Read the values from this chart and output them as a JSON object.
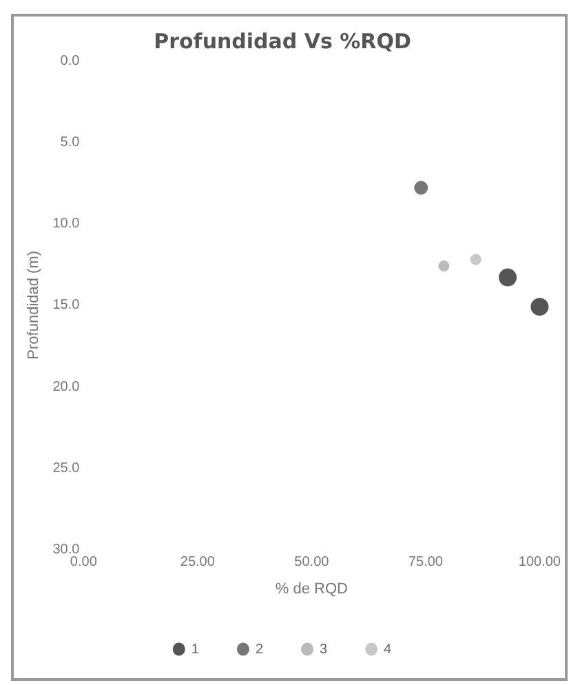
{
  "chart_data": {
    "type": "scatter",
    "title": "Profundidad Vs %RQD",
    "xlabel": "% de RQD",
    "ylabel": "Profundidad (m)",
    "xlim": [
      0,
      100
    ],
    "xticks": [
      {
        "value": 0,
        "label": "0.00"
      },
      {
        "value": 25,
        "label": "25.00"
      },
      {
        "value": 50,
        "label": "50.00"
      },
      {
        "value": 75,
        "label": "75.00"
      },
      {
        "value": 100,
        "label": "100.00"
      }
    ],
    "ylim": [
      30,
      0
    ],
    "yticks": [
      {
        "value": 0,
        "label": "0.0"
      },
      {
        "value": 5,
        "label": "5.0"
      },
      {
        "value": 10,
        "label": "10.0"
      },
      {
        "value": 15,
        "label": "15.0"
      },
      {
        "value": 20,
        "label": "20.0"
      },
      {
        "value": 25,
        "label": "25.0"
      },
      {
        "value": 30,
        "label": "30.0"
      }
    ],
    "grid": false,
    "legend": "bottom",
    "marker": "circle",
    "series": [
      {
        "name": "1",
        "color": "#555555",
        "x": [
          93,
          100
        ],
        "values": [
          13.3,
          15.1
        ]
      },
      {
        "name": "2",
        "color": "#777777",
        "x": [
          74
        ],
        "values": [
          7.8
        ]
      },
      {
        "name": "3",
        "color": "#bbbbbb",
        "x": [
          79
        ],
        "values": [
          12.6
        ]
      },
      {
        "name": "4",
        "color": "#c8c8c8",
        "x": [
          86
        ],
        "values": [
          12.2
        ]
      }
    ]
  }
}
